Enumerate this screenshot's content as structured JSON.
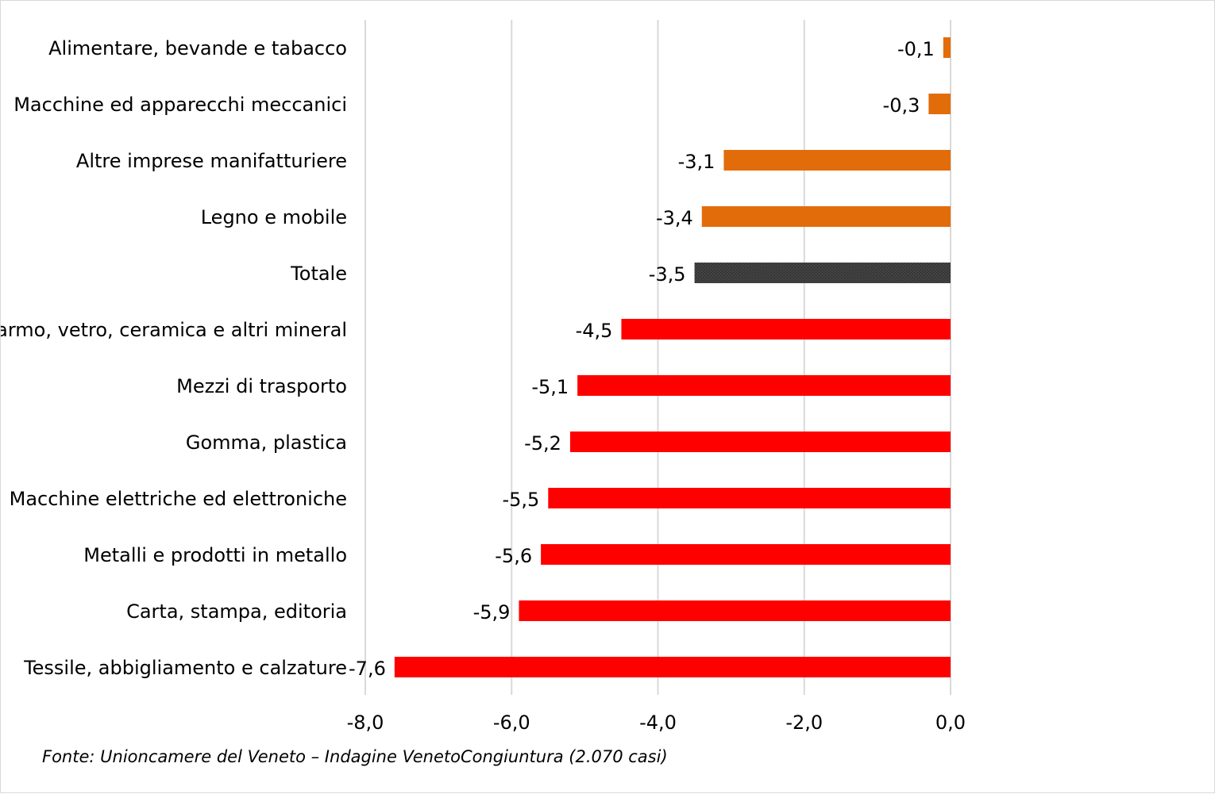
{
  "chart_data": {
    "type": "bar",
    "orientation": "horizontal",
    "categories": [
      "Alimentare, bevande e tabacco",
      "Macchine ed apparecchi meccanici",
      "Altre imprese manifatturiere",
      "Legno e mobile",
      "Totale",
      "Marmo, vetro, ceramica e altri mineral",
      "Mezzi di trasporto",
      "Gomma, plastica",
      "Macchine elettriche ed elettroniche",
      "Metalli e prodotti in metallo",
      "Carta, stampa, editoria",
      "Tessile, abbigliamento e calzature"
    ],
    "values": [
      -0.1,
      -0.3,
      -3.1,
      -3.4,
      -3.5,
      -4.5,
      -5.1,
      -5.2,
      -5.5,
      -5.6,
      -5.9,
      -7.6
    ],
    "value_labels": [
      "-0,1",
      "-0,3",
      "-3,1",
      "-3,4",
      "-3,5",
      "-4,5",
      "-5,1",
      "-5,2",
      "-5,5",
      "-5,6",
      "-5,9",
      "-7,6"
    ],
    "bar_colors": [
      "#e36c0a",
      "#e36c0a",
      "#e36c0a",
      "#e36c0a",
      "#404040",
      "#ff0000",
      "#ff0000",
      "#ff0000",
      "#ff0000",
      "#ff0000",
      "#ff0000",
      "#ff0000"
    ],
    "xlim": [
      -8.0,
      0.0
    ],
    "xticks": [
      -8.0,
      -6.0,
      -4.0,
      -2.0,
      0.0
    ],
    "xtick_labels": [
      "-8,0",
      "-6,0",
      "-4,0",
      "-2,0",
      "0,0"
    ],
    "grid": "vertical",
    "grid_color": "#d9d9d9",
    "legend": "none",
    "title": "",
    "xlabel": "",
    "ylabel": ""
  },
  "source_note": "Fonte: Unioncamere del Veneto – Indagine VenetoCongiuntura (2.070 casi)"
}
